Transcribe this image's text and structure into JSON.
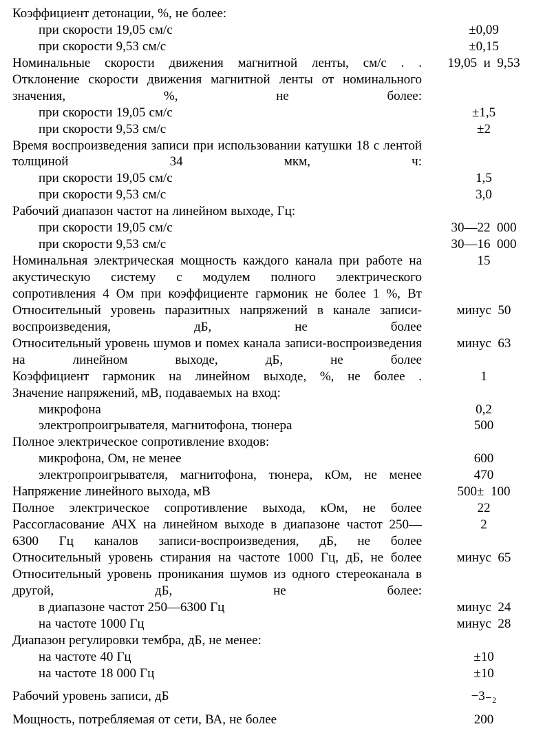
{
  "specs": [
    {
      "type": "head",
      "text": "Коэффициент детонации, %, не более:"
    },
    {
      "type": "sub",
      "text": "при скорости 19,05 см/с",
      "value": "±0,09"
    },
    {
      "type": "sub",
      "text": "при скорости 9,53 см/с",
      "value": "±0,15"
    },
    {
      "type": "line",
      "text": "Номинальные скорости движения магнитной ленты, см/с . .",
      "value": "19,05 и 9,53",
      "just": true
    },
    {
      "type": "head",
      "text": "Отклонение скорости движения магнитной ленты от номинального значения, %, не более:",
      "just": true
    },
    {
      "type": "sub",
      "text": "при скорости 19,05 см/с",
      "value": "±1,5"
    },
    {
      "type": "sub",
      "text": "при скорости 9,53 см/с",
      "value": "±2"
    },
    {
      "type": "head",
      "text": "Время воспроизведения записи при использовании катушки 18 с лентой толщиной 34 мкм, ч:",
      "just": true
    },
    {
      "type": "sub",
      "text": "при скорости 19,05 см/с",
      "value": "1,5"
    },
    {
      "type": "sub",
      "text": "при скорости 9,53 см/с",
      "value": "3,0"
    },
    {
      "type": "head",
      "text": "Рабочий диапазон частот на линейном выходе, Гц:"
    },
    {
      "type": "sub",
      "text": "при скорости 19,05 см/с",
      "value": "30—22 000"
    },
    {
      "type": "sub",
      "text": "при скорости 9,53 см/с",
      "value": "30—16 000"
    },
    {
      "type": "line",
      "text": "Номинальная электрическая мощность каждого канала при работе на акустическую систему с модулем полного электрического сопротивления 4 Ом при коэффициенте гармоник не более 1 %, Вт",
      "value": "15",
      "just": true
    },
    {
      "type": "line",
      "text": "Относительный уровень паразитных напряжений в канале записи-воспроизведения, дБ, не более",
      "value": "минус 50",
      "just": true
    },
    {
      "type": "line",
      "text": "Относительный уровень шумов и помех канала записи-воспроизведения на линейном выходе, дБ, не более",
      "value": "минус 63",
      "just": true
    },
    {
      "type": "line",
      "text": "Коэффициент гармоник на линейном выходе, %, не более .",
      "value": "1",
      "just": true
    },
    {
      "type": "head",
      "text": "Значение напряжений, мВ, подаваемых на вход:"
    },
    {
      "type": "sub",
      "text": "микрофона",
      "value": "0,2"
    },
    {
      "type": "sub",
      "text": "электропроигрывателя, магнитофона, тюнера",
      "value": "500"
    },
    {
      "type": "head",
      "text": "Полное электрическое сопротивление входов:"
    },
    {
      "type": "sub",
      "text": "микрофона, Ом, не менее",
      "value": "600"
    },
    {
      "type": "sub",
      "text": "электропроигрывателя, магнитофона, тюнера, кОм, не менее",
      "value": "470",
      "just": true
    },
    {
      "type": "line",
      "text": "Напряжение линейного выхода, мВ",
      "value": "500± 100"
    },
    {
      "type": "line",
      "text": "Полное электрическое сопротивление выхода, кОм, не более",
      "value": "22",
      "just": true
    },
    {
      "type": "line",
      "text": "Рассогласование АЧХ на линейном выходе в диапазоне частот 250—6300 Гц каналов записи-воспроизведения, дБ, не более",
      "value": "2",
      "just": true
    },
    {
      "type": "line",
      "text": "Относительный уровень стирания на частоте 1000 Гц, дБ, не более",
      "value": "минус 65",
      "just": true
    },
    {
      "type": "head",
      "text": "Относительный уровень проникания шумов из одного стереоканала в другой, дБ, не более:",
      "just": true
    },
    {
      "type": "sub",
      "text": "в диапазоне частот 250—6300 Гц",
      "value": "минус 24"
    },
    {
      "type": "sub",
      "text": "на частоте 1000 Гц",
      "value": "минус 28"
    },
    {
      "type": "head",
      "text": "Диапазон регулировки тембра, дБ, не менее:"
    },
    {
      "type": "sub",
      "text": "на частоте 40 Гц",
      "value": "±10"
    },
    {
      "type": "sub",
      "text": "на частоте 18 000 Гц",
      "value": "±10"
    },
    {
      "type": "gap"
    },
    {
      "type": "line",
      "text": "Рабочий уровень записи, дБ",
      "value": "−3₋₂"
    },
    {
      "type": "gap"
    },
    {
      "type": "line",
      "text": "Мощность, потребляемая от сети, ВА, не более",
      "value": "200"
    }
  ]
}
